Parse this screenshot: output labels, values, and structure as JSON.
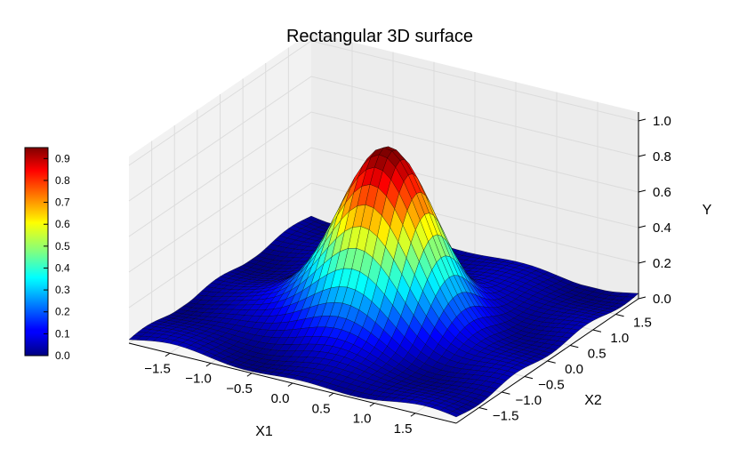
{
  "chart_data": {
    "type": "surface3d",
    "title": "Rectangular 3D surface",
    "xlabel": "X1",
    "ylabel": "X2",
    "zlabel": "Y",
    "xlim": [
      -2,
      2
    ],
    "ylim": [
      -2,
      2
    ],
    "zlim": [
      0,
      1
    ],
    "x_ticks": [
      "−1.5",
      "−1.0",
      "−0.5",
      "0.0",
      "0.5",
      "1.0",
      "1.5"
    ],
    "y_ticks": [
      "−1.5",
      "−1.0",
      "−0.5",
      "0.0",
      "0.5",
      "1.0",
      "1.5"
    ],
    "z_ticks": [
      "0.0",
      "0.2",
      "0.4",
      "0.6",
      "0.8",
      "1.0"
    ],
    "surface": {
      "function": "gaussian_bump",
      "peak_value": 0.95,
      "peak_location": [
        0,
        0
      ],
      "grid_points": 41
    },
    "colorbar": {
      "colormap": "jet",
      "min": 0.0,
      "max": 0.95,
      "ticks": [
        "0.0",
        "0.1",
        "0.2",
        "0.3",
        "0.4",
        "0.5",
        "0.6",
        "0.7",
        "0.8",
        "0.9"
      ]
    },
    "grid": true
  }
}
